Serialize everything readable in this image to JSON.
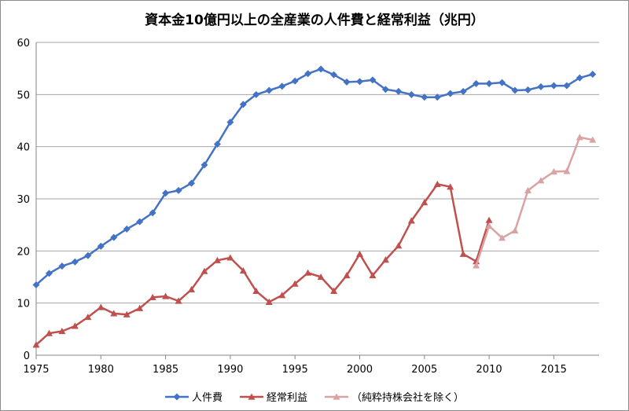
{
  "chart_data": {
    "type": "line",
    "title": "資本金10億円以上の全産業の人件費と経常利益（兆円）",
    "xlabel": "",
    "ylabel": "",
    "xlim": [
      1975,
      2018.5
    ],
    "ylim": [
      0,
      60
    ],
    "x_ticks": [
      1975,
      1980,
      1985,
      1990,
      1995,
      2000,
      2005,
      2010,
      2015
    ],
    "y_ticks": [
      0,
      10,
      20,
      30,
      40,
      50,
      60
    ],
    "grid": "horizontal",
    "legend_position": "bottom",
    "series": [
      {
        "name": "人件費",
        "color": "#4472c4",
        "marker": "diamond",
        "x": [
          1975,
          1976,
          1977,
          1978,
          1979,
          1980,
          1981,
          1982,
          1983,
          1984,
          1985,
          1986,
          1987,
          1988,
          1989,
          1990,
          1991,
          1992,
          1993,
          1994,
          1995,
          1996,
          1997,
          1998,
          1999,
          2000,
          2001,
          2002,
          2003,
          2004,
          2005,
          2006,
          2007,
          2008,
          2009,
          2010,
          2011,
          2012,
          2013,
          2014,
          2015,
          2016,
          2017,
          2018
        ],
        "y": [
          13.5,
          15.7,
          17.1,
          17.9,
          19.1,
          20.9,
          22.6,
          24.2,
          25.6,
          27.3,
          31.1,
          31.6,
          33.0,
          36.5,
          40.5,
          44.7,
          48.1,
          50.0,
          50.8,
          51.6,
          52.6,
          54.0,
          54.9,
          53.8,
          52.4,
          52.5,
          52.8,
          51.0,
          50.6,
          50.0,
          49.5,
          49.5,
          50.2,
          50.6,
          52.1,
          52.1,
          52.3,
          50.8,
          50.9,
          51.5,
          51.7,
          51.7,
          53.2,
          53.9
        ]
      },
      {
        "name": "経常利益",
        "color": "#c0504d",
        "marker": "triangle",
        "x": [
          1975,
          1976,
          1977,
          1978,
          1979,
          1980,
          1981,
          1982,
          1983,
          1984,
          1985,
          1986,
          1987,
          1988,
          1989,
          1990,
          1991,
          1992,
          1993,
          1994,
          1995,
          1996,
          1997,
          1998,
          1999,
          2000,
          2001,
          2002,
          2003,
          2004,
          2005,
          2006,
          2007,
          2008,
          2009,
          2010
        ],
        "y": [
          2.0,
          4.2,
          4.6,
          5.6,
          7.3,
          9.2,
          8.0,
          7.8,
          9.0,
          11.1,
          11.3,
          10.4,
          12.6,
          16.1,
          18.2,
          18.7,
          16.2,
          12.3,
          10.2,
          11.5,
          13.7,
          15.8,
          15.0,
          12.3,
          15.3,
          19.4,
          15.3,
          18.3,
          21.0,
          25.8,
          29.3,
          32.8,
          32.3,
          19.4,
          18.0,
          25.9
        ]
      },
      {
        "name": "（純粋持株会社を除く）",
        "color": "#d9a3a3",
        "marker": "triangle",
        "x": [
          2009,
          2010,
          2011,
          2012,
          2013,
          2014,
          2015,
          2016,
          2017,
          2018
        ],
        "y": [
          17.2,
          24.8,
          22.5,
          23.9,
          31.6,
          33.5,
          35.2,
          35.3,
          41.8,
          41.3
        ]
      }
    ]
  }
}
